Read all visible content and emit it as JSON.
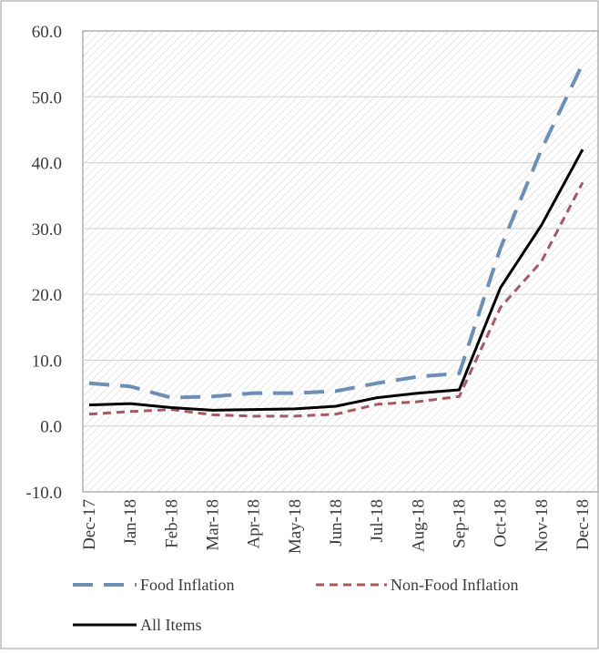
{
  "chart_data": {
    "type": "line",
    "title": "",
    "xlabel": "",
    "ylabel": "",
    "categories": [
      "Dec-17",
      "Jan-18",
      "Feb-18",
      "Mar-18",
      "Apr-18",
      "May-18",
      "Jun-18",
      "Jul-18",
      "Aug-18",
      "Sep-18",
      "Oct-18",
      "Nov-18",
      "Dec-18"
    ],
    "ylim": [
      -10,
      60
    ],
    "yticks": [
      "-10.0",
      "0.0",
      "10.0",
      "20.0",
      "30.0",
      "40.0",
      "50.0",
      "60.0"
    ],
    "grid": true,
    "legend_position": "bottom",
    "series": [
      {
        "name": "Food Inflation",
        "color": "#6d8fb6",
        "style": "dashed",
        "values": [
          6.5,
          6.0,
          4.3,
          4.5,
          5.0,
          5.0,
          5.3,
          6.5,
          7.5,
          8.0,
          27.0,
          42.0,
          55.0
        ]
      },
      {
        "name": "Non-Food Inflation",
        "color": "#a65a5f",
        "style": "short-dashed",
        "values": [
          1.8,
          2.2,
          2.5,
          1.7,
          1.5,
          1.5,
          1.8,
          3.3,
          3.7,
          4.5,
          18.0,
          25.0,
          37.0
        ]
      },
      {
        "name": "All Items",
        "color": "#000000",
        "style": "solid",
        "values": [
          3.2,
          3.4,
          2.8,
          2.4,
          2.5,
          2.6,
          3.0,
          4.3,
          5.0,
          5.5,
          21.0,
          30.5,
          42.0
        ]
      }
    ]
  }
}
